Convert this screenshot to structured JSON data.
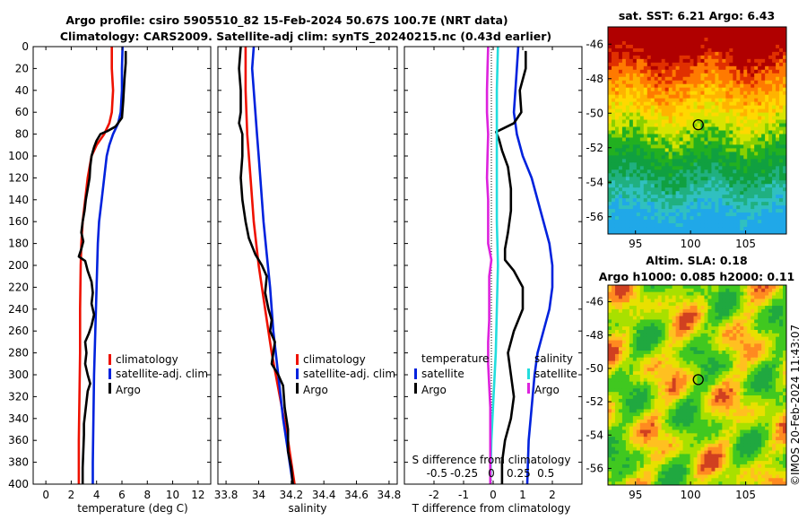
{
  "figure": {
    "title_line1": "Argo profile: csiro 5905510_82 15-Feb-2024 50.67S 100.7E (NRT data)",
    "title_line2": "Climatology: CARS2009. Satellite-adj clim: synTS_20240215.nc (0.43d earlier)",
    "watermark": "©IMOS 20-Feb-2024 11:43:07"
  },
  "colors": {
    "climatology": "#ee1100",
    "satellite": "#0022dd",
    "argo": "#000000",
    "salinity_sat": "#22dddd",
    "salinity_argo": "#dd22dd"
  },
  "chart_data": [
    {
      "type": "line",
      "id": "temperature",
      "xlabel": "temperature (deg C)",
      "xlim": [
        -1,
        13
      ],
      "ylim": [
        400,
        0
      ],
      "xticks": [
        0,
        2,
        4,
        6,
        8,
        10,
        12
      ],
      "xtick_labels": [
        "0",
        "2",
        "4",
        "6",
        "8",
        "10",
        "12"
      ],
      "yticks": [
        0,
        20,
        40,
        60,
        80,
        100,
        120,
        140,
        160,
        180,
        200,
        220,
        240,
        260,
        280,
        300,
        320,
        340,
        360,
        380,
        400
      ],
      "ytick_labels": [
        "0",
        "20",
        "40",
        "60",
        "80",
        "100",
        "120",
        "140",
        "160",
        "180",
        "200",
        "220",
        "240",
        "260",
        "280",
        "300",
        "320",
        "340",
        "360",
        "380",
        "400"
      ],
      "legend": [
        "climatology",
        "satellite-adj. clim",
        "Argo"
      ],
      "series": [
        {
          "name": "climatology",
          "color": "#ee1100",
          "width": 2.6,
          "points": [
            [
              5.2,
              0
            ],
            [
              5.2,
              20
            ],
            [
              5.3,
              40
            ],
            [
              5.2,
              60
            ],
            [
              5.0,
              70
            ],
            [
              4.6,
              80
            ],
            [
              4.0,
              90
            ],
            [
              3.6,
              100
            ],
            [
              3.3,
              120
            ],
            [
              3.1,
              140
            ],
            [
              2.9,
              160
            ],
            [
              2.8,
              180
            ],
            [
              2.75,
              200
            ],
            [
              2.7,
              240
            ],
            [
              2.7,
              280
            ],
            [
              2.65,
              320
            ],
            [
              2.6,
              360
            ],
            [
              2.6,
              400
            ]
          ]
        },
        {
          "name": "satellite-adj. clim",
          "color": "#0022dd",
          "width": 2.6,
          "points": [
            [
              6.05,
              0
            ],
            [
              6.0,
              20
            ],
            [
              6.0,
              40
            ],
            [
              5.9,
              60
            ],
            [
              5.7,
              70
            ],
            [
              5.3,
              80
            ],
            [
              5.0,
              90
            ],
            [
              4.8,
              100
            ],
            [
              4.6,
              120
            ],
            [
              4.4,
              140
            ],
            [
              4.2,
              160
            ],
            [
              4.1,
              180
            ],
            [
              4.0,
              220
            ],
            [
              3.9,
              260
            ],
            [
              3.8,
              300
            ],
            [
              3.75,
              340
            ],
            [
              3.7,
              380
            ],
            [
              3.7,
              400
            ]
          ]
        },
        {
          "name": "Argo",
          "color": "#000000",
          "width": 2.6,
          "points": [
            [
              6.3,
              4
            ],
            [
              6.3,
              15
            ],
            [
              6.2,
              30
            ],
            [
              6.1,
              50
            ],
            [
              6.0,
              65
            ],
            [
              5.5,
              73
            ],
            [
              4.9,
              77
            ],
            [
              4.3,
              80
            ],
            [
              4.0,
              86
            ],
            [
              3.8,
              92
            ],
            [
              3.6,
              100
            ],
            [
              3.5,
              110
            ],
            [
              3.45,
              120
            ],
            [
              3.3,
              130
            ],
            [
              3.15,
              140
            ],
            [
              3.05,
              150
            ],
            [
              2.9,
              160
            ],
            [
              2.8,
              170
            ],
            [
              2.95,
              178
            ],
            [
              2.8,
              185
            ],
            [
              2.6,
              192
            ],
            [
              3.1,
              196
            ],
            [
              3.3,
              205
            ],
            [
              3.6,
              215
            ],
            [
              3.7,
              225
            ],
            [
              3.6,
              235
            ],
            [
              3.8,
              245
            ],
            [
              3.6,
              255
            ],
            [
              3.4,
              262
            ],
            [
              3.1,
              270
            ],
            [
              3.2,
              280
            ],
            [
              3.1,
              290
            ],
            [
              3.3,
              300
            ],
            [
              3.5,
              308
            ],
            [
              3.3,
              315
            ],
            [
              3.2,
              325
            ],
            [
              3.1,
              335
            ],
            [
              3.0,
              345
            ],
            [
              3.0,
              355
            ],
            [
              2.95,
              370
            ],
            [
              2.9,
              385
            ],
            [
              2.9,
              400
            ]
          ]
        }
      ]
    },
    {
      "type": "line",
      "id": "salinity",
      "xlabel": "salinity",
      "xlim": [
        33.75,
        34.85
      ],
      "ylim": [
        400,
        0
      ],
      "xticks": [
        33.8,
        34.0,
        34.2,
        34.4,
        34.6,
        34.8
      ],
      "xtick_labels": [
        "33.8",
        "34",
        "34.2",
        "34.4",
        "34.6",
        "34.8"
      ],
      "legend": [
        "climatology",
        "satellite-adj. clim",
        "Argo"
      ],
      "series": [
        {
          "name": "climatology",
          "color": "#ee1100",
          "width": 2.6,
          "points": [
            [
              33.92,
              0
            ],
            [
              33.92,
              40
            ],
            [
              33.93,
              80
            ],
            [
              33.95,
              120
            ],
            [
              33.97,
              160
            ],
            [
              34.0,
              200
            ],
            [
              34.04,
              240
            ],
            [
              34.08,
              280
            ],
            [
              34.13,
              320
            ],
            [
              34.18,
              360
            ],
            [
              34.22,
              400
            ]
          ]
        },
        {
          "name": "satellite-adj. clim",
          "color": "#0022dd",
          "width": 2.6,
          "points": [
            [
              33.97,
              0
            ],
            [
              33.96,
              20
            ],
            [
              33.97,
              40
            ],
            [
              33.98,
              60
            ],
            [
              33.99,
              80
            ],
            [
              34.0,
              100
            ],
            [
              34.01,
              120
            ],
            [
              34.02,
              140
            ],
            [
              34.03,
              160
            ],
            [
              34.05,
              190
            ],
            [
              34.07,
              220
            ],
            [
              34.09,
              260
            ],
            [
              34.12,
              300
            ],
            [
              34.15,
              340
            ],
            [
              34.18,
              370
            ],
            [
              34.21,
              400
            ]
          ]
        },
        {
          "name": "Argo",
          "color": "#000000",
          "width": 2.6,
          "points": [
            [
              33.89,
              0
            ],
            [
              33.88,
              20
            ],
            [
              33.89,
              40
            ],
            [
              33.89,
              60
            ],
            [
              33.88,
              70
            ],
            [
              33.9,
              80
            ],
            [
              33.9,
              100
            ],
            [
              33.89,
              120
            ],
            [
              33.9,
              140
            ],
            [
              33.92,
              160
            ],
            [
              33.94,
              175
            ],
            [
              33.98,
              190
            ],
            [
              34.02,
              200
            ],
            [
              34.05,
              210
            ],
            [
              34.04,
              225
            ],
            [
              34.06,
              240
            ],
            [
              34.08,
              250
            ],
            [
              34.07,
              260
            ],
            [
              34.1,
              270
            ],
            [
              34.09,
              280
            ],
            [
              34.08,
              290
            ],
            [
              34.12,
              300
            ],
            [
              34.15,
              310
            ],
            [
              34.16,
              330
            ],
            [
              34.18,
              350
            ],
            [
              34.18,
              370
            ],
            [
              34.2,
              385
            ],
            [
              34.21,
              400
            ]
          ]
        }
      ]
    },
    {
      "type": "line",
      "id": "difference",
      "xlabel": "T difference from climatology",
      "xlabel_top": "S difference from climatology",
      "xlim": [
        -3,
        3
      ],
      "ylim": [
        400,
        0
      ],
      "xticks": [
        -2,
        -1,
        0,
        1,
        2
      ],
      "xtick_labels": [
        "-2",
        "-1",
        "0",
        "1",
        "2"
      ],
      "s_ticks": [
        -0.5,
        -0.25,
        0,
        0.25,
        0.5
      ],
      "s_tick_labels": [
        "-0.5",
        "-0.25",
        "0",
        "0.25",
        "0.5"
      ],
      "legend_temperature": {
        "title": "temperature",
        "items": [
          "satellite",
          "Argo"
        ]
      },
      "legend_salinity": {
        "title": "salinity",
        "items": [
          "satellite",
          "Argo"
        ]
      },
      "series": [
        {
          "name": "T satellite",
          "color": "#0022dd",
          "width": 2.6,
          "points": [
            [
              0.85,
              0
            ],
            [
              0.8,
              20
            ],
            [
              0.75,
              40
            ],
            [
              0.7,
              60
            ],
            [
              0.8,
              80
            ],
            [
              1.0,
              100
            ],
            [
              1.3,
              120
            ],
            [
              1.6,
              150
            ],
            [
              1.9,
              180
            ],
            [
              2.0,
              200
            ],
            [
              2.0,
              220
            ],
            [
              1.9,
              240
            ],
            [
              1.7,
              260
            ],
            [
              1.5,
              280
            ],
            [
              1.4,
              300
            ],
            [
              1.3,
              330
            ],
            [
              1.2,
              360
            ],
            [
              1.15,
              400
            ]
          ]
        },
        {
          "name": "T Argo",
          "color": "#000000",
          "width": 2.6,
          "points": [
            [
              1.1,
              4
            ],
            [
              1.1,
              20
            ],
            [
              0.9,
              40
            ],
            [
              0.95,
              60
            ],
            [
              0.7,
              70
            ],
            [
              0.1,
              78
            ],
            [
              0.2,
              85
            ],
            [
              0.3,
              95
            ],
            [
              0.5,
              110
            ],
            [
              0.6,
              130
            ],
            [
              0.6,
              150
            ],
            [
              0.5,
              170
            ],
            [
              0.4,
              185
            ],
            [
              0.4,
              195
            ],
            [
              0.7,
              205
            ],
            [
              1.0,
              220
            ],
            [
              1.0,
              240
            ],
            [
              0.7,
              260
            ],
            [
              0.5,
              280
            ],
            [
              0.6,
              300
            ],
            [
              0.7,
              320
            ],
            [
              0.6,
              340
            ],
            [
              0.4,
              360
            ],
            [
              0.3,
              380
            ],
            [
              0.3,
              400
            ]
          ]
        },
        {
          "name": "S satellite",
          "color": "#22dddd",
          "width": 2.6,
          "points": [
            [
              0.06,
              0
            ],
            [
              0.05,
              40
            ],
            [
              0.05,
              80
            ],
            [
              0.05,
              120
            ],
            [
              0.05,
              160
            ],
            [
              0.06,
              200
            ],
            [
              0.05,
              240
            ],
            [
              0.04,
              280
            ],
            [
              0.02,
              320
            ],
            [
              0.0,
              360
            ],
            [
              -0.01,
              400
            ]
          ]
        },
        {
          "name": "S Argo",
          "color": "#dd22dd",
          "width": 2.6,
          "points": [
            [
              -0.03,
              0
            ],
            [
              -0.035,
              20
            ],
            [
              -0.04,
              40
            ],
            [
              -0.04,
              60
            ],
            [
              -0.03,
              80
            ],
            [
              -0.035,
              100
            ],
            [
              -0.04,
              120
            ],
            [
              -0.03,
              140
            ],
            [
              -0.03,
              160
            ],
            [
              -0.03,
              180
            ],
            [
              0.0,
              195
            ],
            [
              -0.02,
              210
            ],
            [
              -0.02,
              230
            ],
            [
              -0.02,
              250
            ],
            [
              -0.03,
              270
            ],
            [
              -0.03,
              290
            ],
            [
              -0.02,
              310
            ],
            [
              -0.01,
              330
            ],
            [
              -0.01,
              360
            ],
            [
              -0.01,
              400
            ]
          ]
        }
      ]
    },
    {
      "type": "heatmap",
      "id": "sst_map",
      "title": "sat. SST: 6.21 Argo: 6.43",
      "xlim": [
        92.5,
        108.7
      ],
      "ylim": [
        -57,
        -45
      ],
      "xticks": [
        95,
        100,
        105
      ],
      "xtick_labels": [
        "95",
        "100",
        "105"
      ],
      "yticks": [
        -46,
        -48,
        -50,
        -52,
        -54,
        -56
      ],
      "ytick_labels": [
        "-46",
        "-48",
        "-50",
        "-52",
        "-54",
        "-56"
      ],
      "marker": {
        "lon": 100.7,
        "lat": -50.67
      }
    },
    {
      "type": "heatmap",
      "id": "sla_map",
      "title": "Altim. SLA: 0.18",
      "subtitle": "Argo h1000: 0.085 h2000: 0.11",
      "xlim": [
        92.5,
        108.7
      ],
      "ylim": [
        -57,
        -45
      ],
      "xticks": [
        95,
        100,
        105
      ],
      "xtick_labels": [
        "95",
        "100",
        "105"
      ],
      "yticks": [
        -46,
        -48,
        -50,
        -52,
        -54,
        -56
      ],
      "ytick_labels": [
        "-46",
        "-48",
        "-50",
        "-52",
        "-54",
        "-56"
      ],
      "marker": {
        "lon": 100.7,
        "lat": -50.67
      }
    }
  ]
}
